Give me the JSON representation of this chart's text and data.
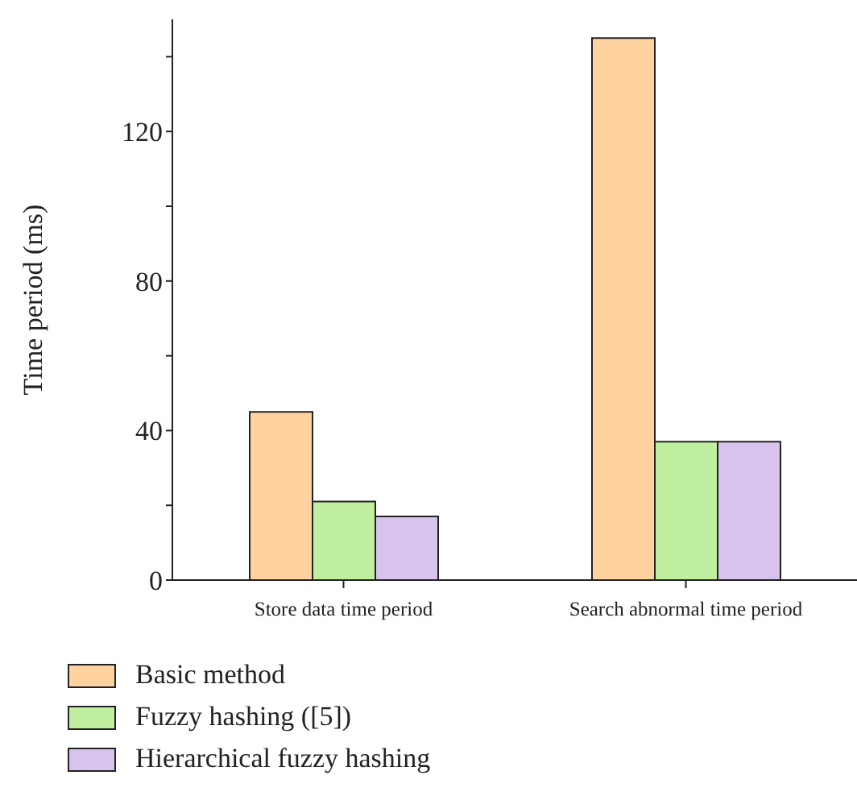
{
  "chart_data": {
    "type": "bar",
    "ylabel": "Time period (ms)",
    "categories": [
      "Store data time period",
      "Search abnormal time period"
    ],
    "series": [
      {
        "name": "Basic method",
        "color": "#fed39f",
        "values": [
          45,
          145
        ]
      },
      {
        "name": "Fuzzy hashing ([5])",
        "color": "#c1efa0",
        "values": [
          21,
          37
        ]
      },
      {
        "name": "Hierarchical fuzzy hashing",
        "color": "#d8c2ee",
        "values": [
          17,
          37
        ]
      }
    ],
    "ylim": [
      0,
      150
    ],
    "yticks": [
      0,
      {
        "value": 20,
        "label": null
      },
      40,
      {
        "value": 60,
        "label": null
      },
      80,
      {
        "value": 100,
        "label": null
      },
      120,
      {
        "value": 140,
        "label": null
      }
    ],
    "grid": false,
    "legend": "bottom"
  }
}
